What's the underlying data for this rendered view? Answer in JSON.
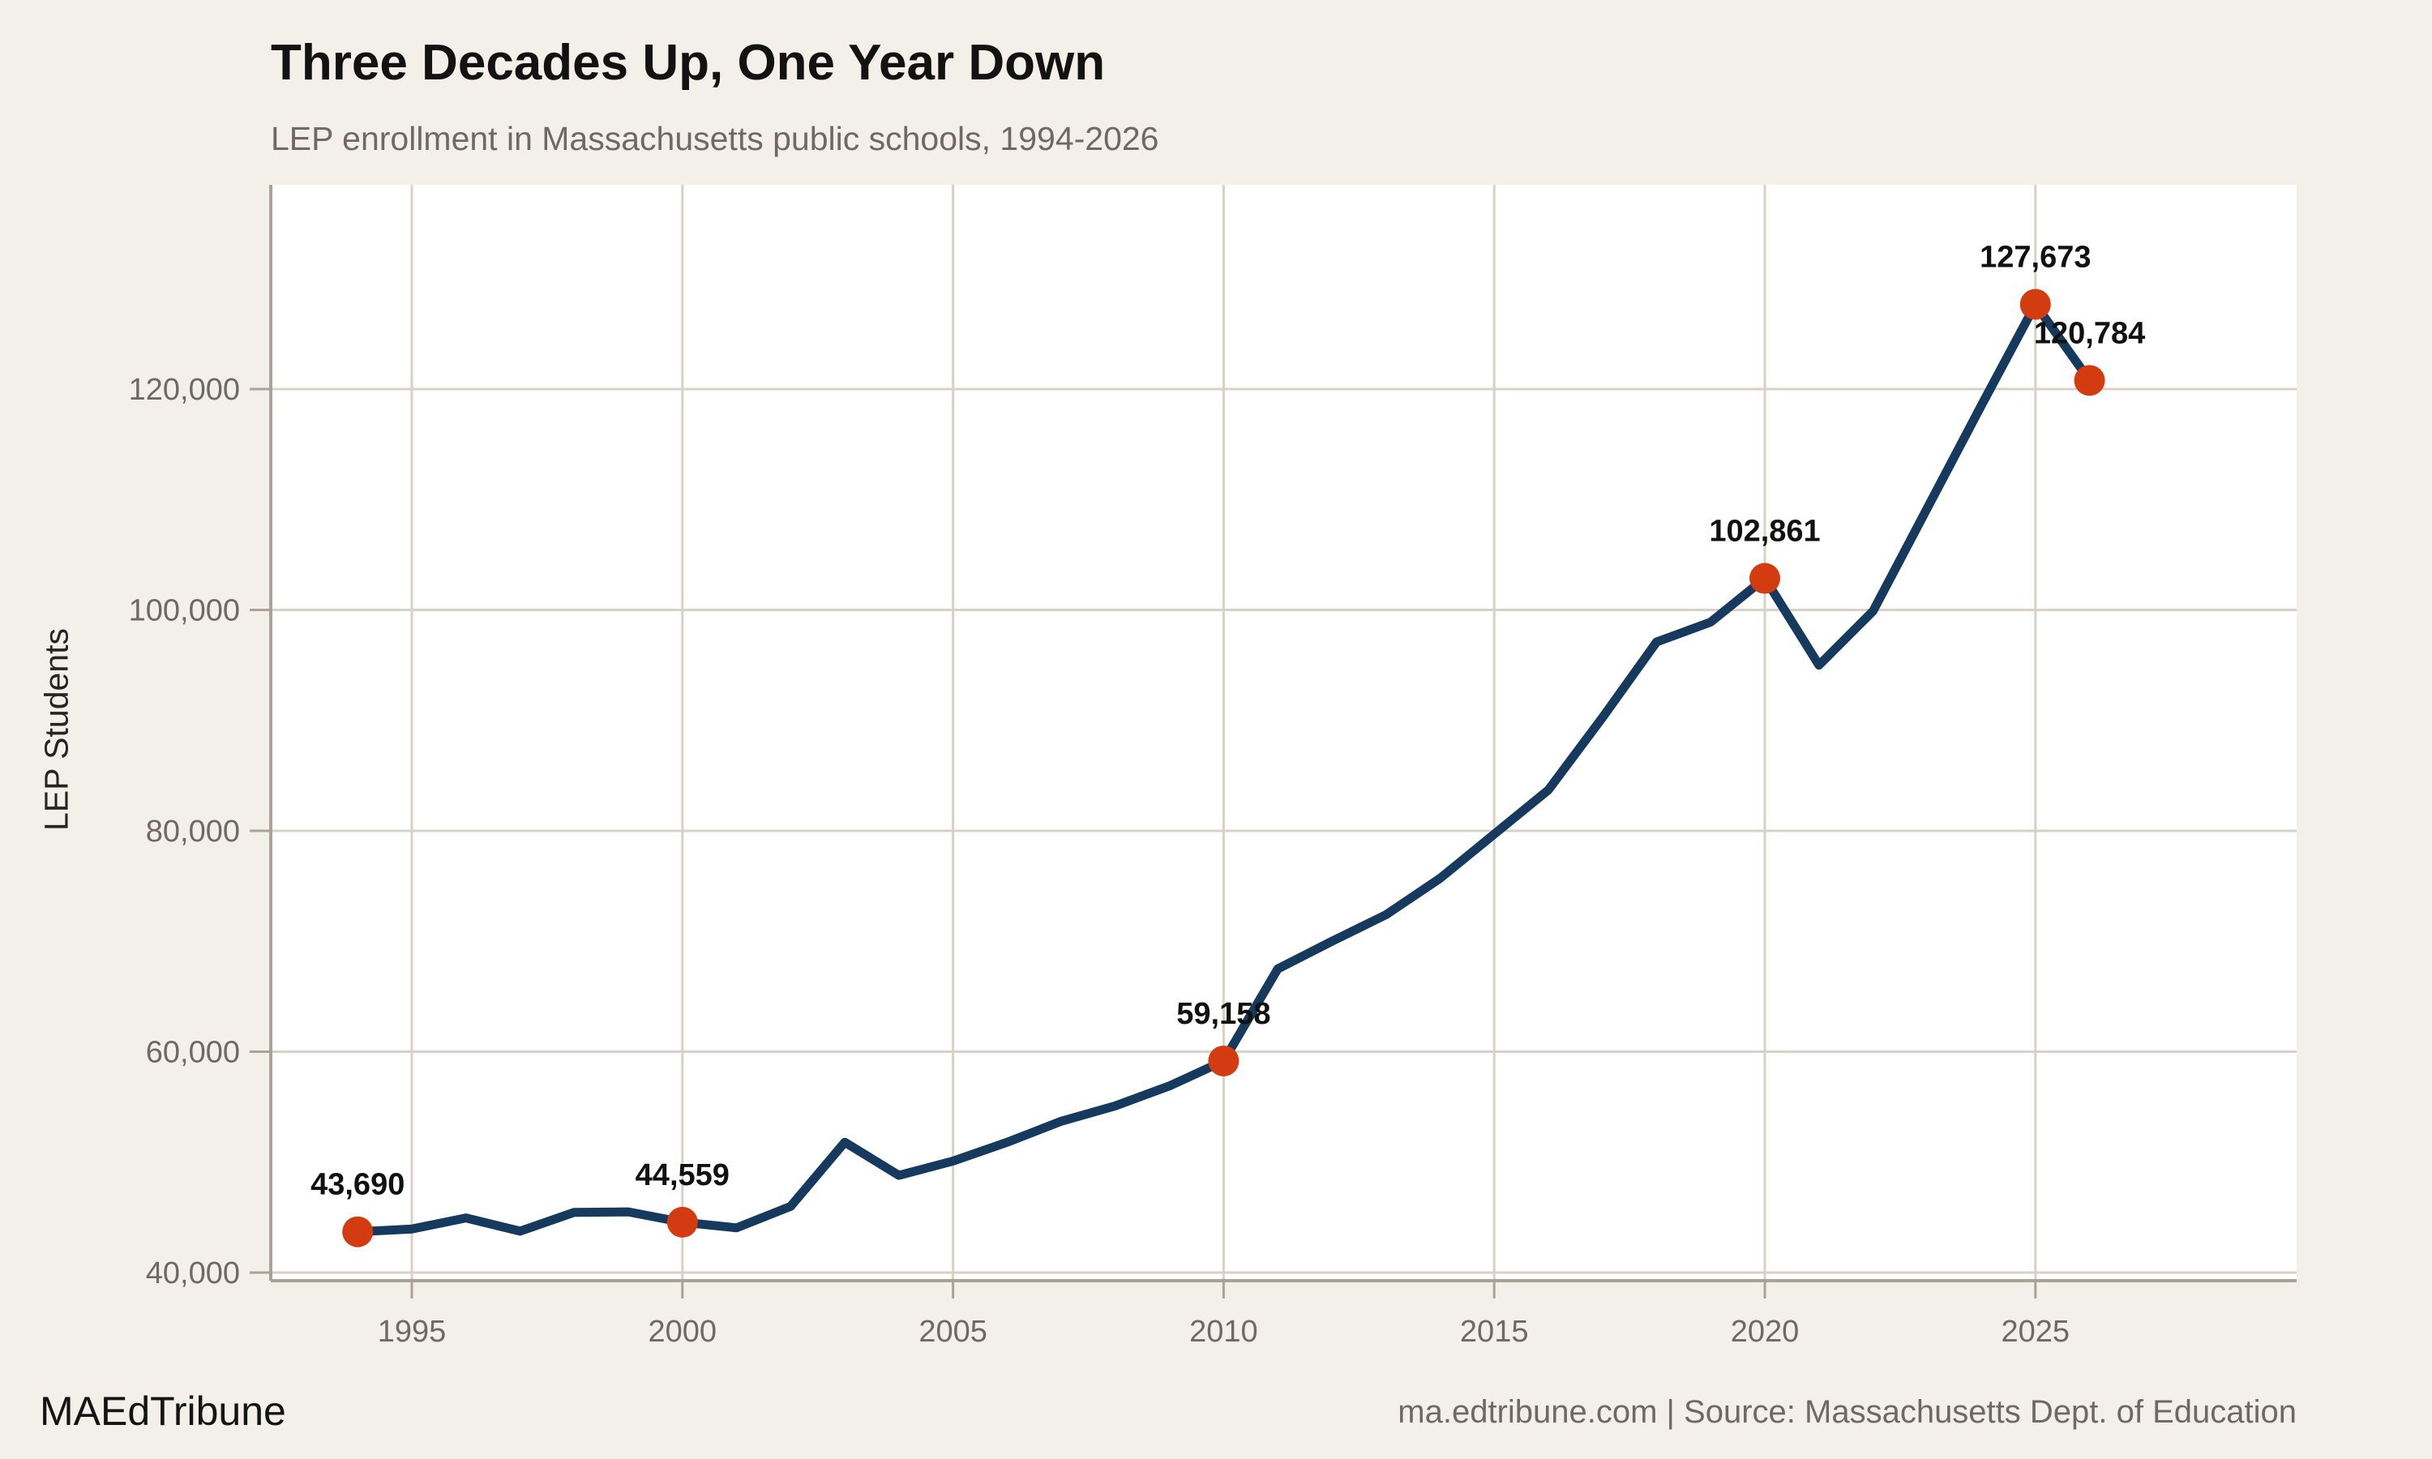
{
  "header": {
    "title": "Three Decades Up, One Year Down",
    "subtitle": "LEP enrollment in Massachusetts public schools, 1994-2026"
  },
  "footer": {
    "brand": "MAEdTribune",
    "source": "ma.edtribune.com | Source: Massachusetts Dept. of Education"
  },
  "chart_data": {
    "type": "line",
    "title": "Three Decades Up, One Year Down",
    "subtitle": "LEP enrollment in Massachusetts public schools, 1994-2026",
    "xlabel": "",
    "ylabel": "LEP Students",
    "x": [
      1994,
      1995,
      1996,
      1997,
      1998,
      1999,
      2000,
      2001,
      2002,
      2003,
      2004,
      2005,
      2006,
      2007,
      2008,
      2009,
      2010,
      2011,
      2012,
      2013,
      2014,
      2015,
      2016,
      2017,
      2018,
      2019,
      2020,
      2021,
      2022,
      2023,
      2024,
      2025,
      2026
    ],
    "values": [
      43690,
      43950,
      44950,
      43750,
      45450,
      45500,
      44559,
      44050,
      46000,
      51800,
      48800,
      50100,
      51800,
      53700,
      55100,
      56900,
      59158,
      67500,
      70000,
      72400,
      75700,
      79700,
      83700,
      90250,
      97100,
      98900,
      102861,
      95000,
      99900,
      109200,
      118500,
      127673,
      120784
    ],
    "series_name": "LEP enrollment",
    "x_ticks": [
      1995,
      2000,
      2005,
      2010,
      2015,
      2020,
      2025
    ],
    "y_ticks": [
      40000,
      60000,
      80000,
      100000,
      120000
    ],
    "xlim": [
      1992.4,
      2029.8
    ],
    "ylim": [
      39300,
      138500
    ],
    "grid": true,
    "legend": false,
    "annotations": [
      {
        "x": 1994,
        "value": 43690,
        "label": "43,690"
      },
      {
        "x": 2000,
        "value": 44559,
        "label": "44,559"
      },
      {
        "x": 2010,
        "value": 59158,
        "label": "59,158"
      },
      {
        "x": 2020,
        "value": 102861,
        "label": "102,861"
      },
      {
        "x": 2025,
        "value": 127673,
        "label": "127,673"
      },
      {
        "x": 2026,
        "value": 120784,
        "label": "120,784"
      }
    ],
    "colors": {
      "background": "#f3f0ea",
      "plot_background": "#ffffff",
      "gridline": "#d7d1c7",
      "axis_line": "#aaa296",
      "line": "#16395e",
      "marker": "#d23c10",
      "tick_text": "#6e6a63",
      "annotation_text": "#111111"
    }
  }
}
